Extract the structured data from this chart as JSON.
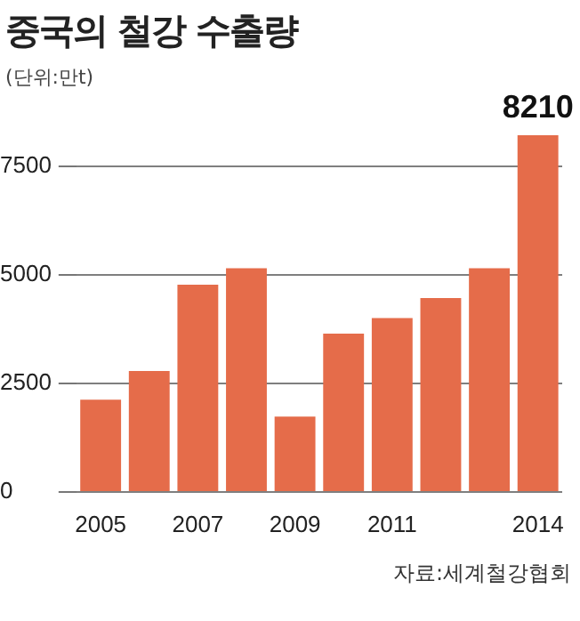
{
  "chart_data": {
    "type": "bar",
    "title": "중국의 철강 수출량",
    "subtitle": "(단위:만t)",
    "categories": [
      "2005",
      null,
      "2007",
      null,
      "2009",
      null,
      "2011",
      null,
      null,
      "2014"
    ],
    "values": [
      2120,
      2780,
      4770,
      5150,
      1730,
      3640,
      4000,
      4460,
      5150,
      8210
    ],
    "value_labels": [
      null,
      null,
      null,
      null,
      null,
      null,
      null,
      null,
      null,
      "8210"
    ],
    "color": "#e56c4a",
    "ylim": [
      0,
      8210
    ],
    "yticks": [
      0,
      2500,
      5000,
      7500
    ],
    "grid": "y",
    "annotations": [
      "자료:세계철강협회"
    ]
  }
}
